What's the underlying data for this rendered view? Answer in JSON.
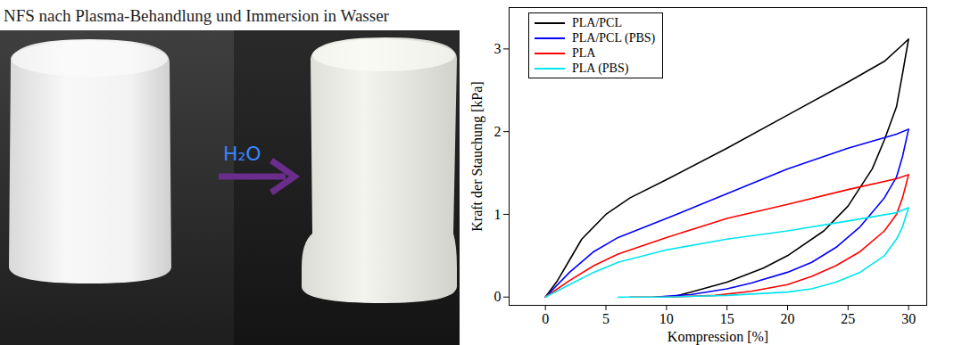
{
  "chart_data": {
    "type": "line",
    "xlabel": "Kompression [%]",
    "ylabel": "Kraft der Stauchung [kPa]",
    "xlim": [
      -3,
      31.5
    ],
    "xticks": [
      0,
      5,
      10,
      15,
      20,
      25,
      30
    ],
    "ylim": [
      -0.1,
      3.5
    ],
    "yticks": [
      0,
      1,
      2,
      3
    ],
    "grid": false,
    "legend": "upper left",
    "series": [
      {
        "name": "PLA/PCL",
        "color": "#000000",
        "x": [
          0,
          1,
          2,
          3,
          5,
          7,
          10,
          15,
          20,
          25,
          28,
          29.5,
          30,
          29.5,
          29,
          28,
          27,
          25,
          23,
          20,
          18,
          15,
          12,
          10.5
        ],
        "values": [
          0,
          0.2,
          0.45,
          0.7,
          1.0,
          1.2,
          1.42,
          1.8,
          2.2,
          2.6,
          2.85,
          3.05,
          3.12,
          2.7,
          2.3,
          1.9,
          1.55,
          1.1,
          0.8,
          0.5,
          0.35,
          0.18,
          0.06,
          0
        ]
      },
      {
        "name": "PLA/PCL (PBS)",
        "color": "#0000ff",
        "x": [
          0,
          2,
          4,
          6,
          10,
          15,
          20,
          25,
          29,
          30,
          29.5,
          29,
          28,
          26,
          24,
          22,
          20,
          17,
          15,
          12,
          9
        ],
        "values": [
          0,
          0.3,
          0.55,
          0.72,
          0.95,
          1.25,
          1.55,
          1.8,
          1.97,
          2.03,
          1.7,
          1.45,
          1.2,
          0.85,
          0.6,
          0.42,
          0.3,
          0.17,
          0.1,
          0.03,
          0
        ]
      },
      {
        "name": "PLA",
        "color": "#ff0000",
        "x": [
          0,
          2,
          4,
          6,
          10,
          15,
          20,
          25,
          29,
          30,
          29.5,
          29,
          28,
          26,
          24,
          22,
          20,
          17,
          14,
          10,
          7
        ],
        "values": [
          0,
          0.2,
          0.38,
          0.52,
          0.72,
          0.95,
          1.12,
          1.3,
          1.43,
          1.48,
          1.2,
          1.0,
          0.8,
          0.55,
          0.38,
          0.25,
          0.15,
          0.07,
          0.02,
          0,
          0
        ]
      },
      {
        "name": "PLA (PBS)",
        "color": "#00e5ee",
        "x": [
          0,
          2,
          4,
          6,
          10,
          15,
          20,
          25,
          29,
          30,
          29.5,
          29,
          28,
          26,
          24,
          22,
          20,
          15,
          10,
          6
        ],
        "values": [
          0,
          0.15,
          0.3,
          0.42,
          0.57,
          0.7,
          0.8,
          0.92,
          1.02,
          1.08,
          0.85,
          0.7,
          0.5,
          0.3,
          0.18,
          0.1,
          0.06,
          0.02,
          0,
          0
        ]
      }
    ]
  },
  "photo_panel": {
    "title": "NFS nach Plasma-Behandlung und Immersion in Wasser",
    "arrow_label": "H₂O"
  }
}
